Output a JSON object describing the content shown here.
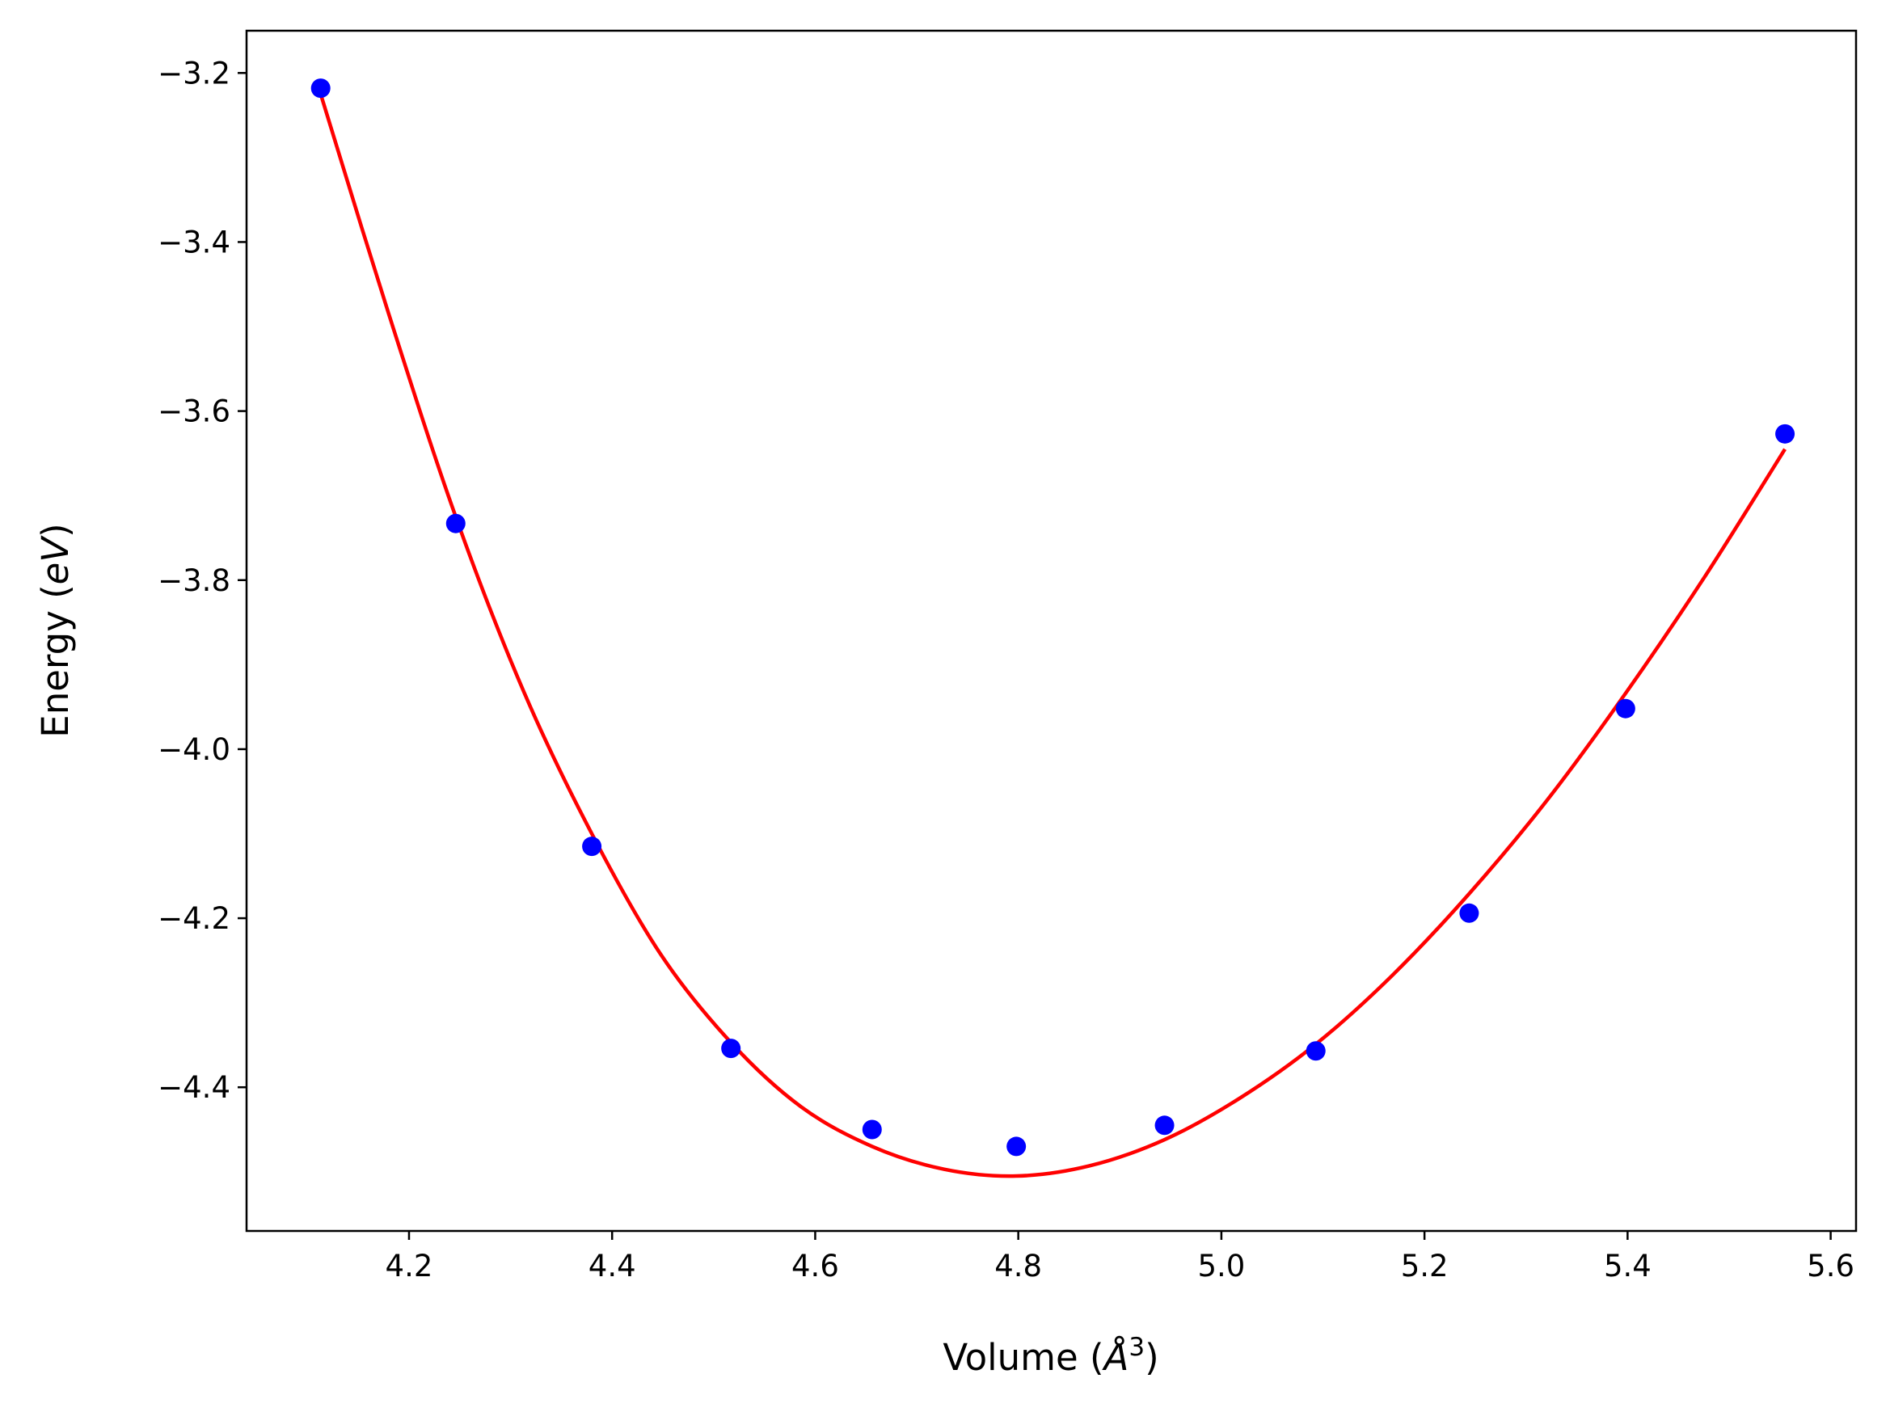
{
  "chart_data": {
    "type": "scatter",
    "title": "",
    "xlabel": {
      "pre": "Volume (",
      "symbol": "Å",
      "sup": "3",
      "post": ")"
    },
    "ylabel": {
      "pre": "Energy (",
      "symbol": "eV",
      "post": ")"
    },
    "xlim": [
      4.04,
      5.625
    ],
    "ylim": [
      -4.57,
      -3.15
    ],
    "xticks": [
      4.2,
      4.4,
      4.6,
      4.8,
      5.0,
      5.2,
      5.4,
      5.6
    ],
    "xtick_labels": [
      "4.2",
      "4.4",
      "4.6",
      "4.8",
      "5.0",
      "5.2",
      "5.4",
      "5.6"
    ],
    "yticks": [
      -3.2,
      -3.4,
      -3.6,
      -3.8,
      -4.0,
      -4.2,
      -4.4
    ],
    "ytick_labels": [
      "−3.2",
      "−3.4",
      "−3.6",
      "−3.8",
      "−4.0",
      "−4.2",
      "−4.4"
    ],
    "grid": false,
    "series": [
      {
        "kind": "scatter",
        "color": "#0000ff",
        "x": [
          4.113,
          4.246,
          4.38,
          4.517,
          4.656,
          4.798,
          4.944,
          5.093,
          5.244,
          5.398,
          5.555
        ],
        "y": [
          -3.218,
          -3.733,
          -4.115,
          -4.354,
          -4.45,
          -4.47,
          -4.445,
          -4.357,
          -4.194,
          -3.952,
          -3.627
        ]
      },
      {
        "kind": "line",
        "color": "#ff0000",
        "x": [
          4.113,
          4.18,
          4.246,
          4.313,
          4.38,
          4.448,
          4.517,
          4.586,
          4.656,
          4.727,
          4.798,
          4.87,
          4.944,
          5.018,
          5.093,
          5.168,
          5.244,
          5.321,
          5.398,
          5.476,
          5.555
        ],
        "y": [
          -3.225,
          -3.485,
          -3.725,
          -3.932,
          -4.1,
          -4.243,
          -4.347,
          -4.423,
          -4.47,
          -4.497,
          -4.505,
          -4.493,
          -4.462,
          -4.413,
          -4.349,
          -4.268,
          -4.171,
          -4.06,
          -3.934,
          -3.796,
          -3.645
        ]
      }
    ]
  }
}
